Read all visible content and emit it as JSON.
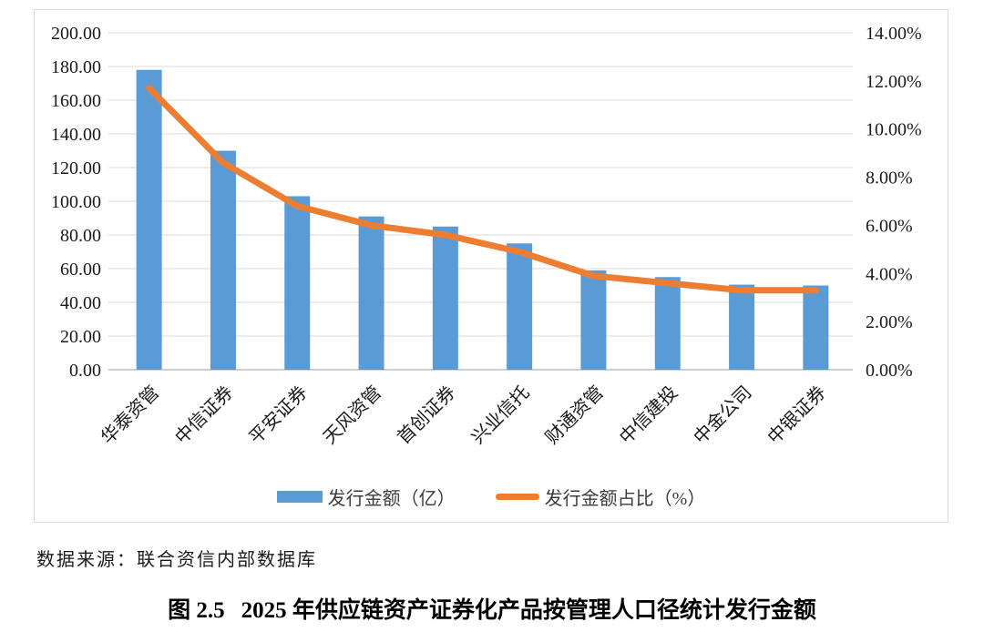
{
  "chart_data": {
    "type": "bar",
    "subtype": "bar-line-combo",
    "categories": [
      "华泰资管",
      "中信证券",
      "平安证券",
      "天风资管",
      "首创证券",
      "兴业信托",
      "财通资管",
      "中信建投",
      "中金公司",
      "中银证券"
    ],
    "series": [
      {
        "name": "发行金额（亿）",
        "type": "bar",
        "axis": "left",
        "color": "#5b9bd5",
        "values": [
          178,
          130,
          103,
          91,
          85,
          75,
          59,
          55,
          50.5,
          50
        ]
      },
      {
        "name": "发行金额占比（%）",
        "type": "line",
        "axis": "right",
        "color": "#ed7d31",
        "values": [
          11.7,
          8.6,
          6.8,
          6.0,
          5.6,
          4.9,
          3.9,
          3.6,
          3.3,
          3.3
        ]
      }
    ],
    "title": "图 2.5　2025 年供应链资产证券化产品按管理人口径统计发行金额",
    "xlabel": "",
    "ylabel_left": "发行金额（亿）",
    "ylabel_right": "发行金额占比（%）",
    "left_axis": {
      "min": 0,
      "max": 200,
      "step": 20,
      "ticks": [
        "0.00",
        "20.00",
        "40.00",
        "60.00",
        "80.00",
        "100.00",
        "120.00",
        "140.00",
        "160.00",
        "180.00",
        "200.00"
      ]
    },
    "right_axis": {
      "min": 0,
      "max": 14,
      "step": 2,
      "ticks": [
        "0.00%",
        "2.00%",
        "4.00%",
        "6.00%",
        "8.00%",
        "10.00%",
        "12.00%",
        "14.00%"
      ]
    },
    "grid": true,
    "legend_position": "bottom"
  },
  "legend": {
    "bar_label": "发行金额（亿）",
    "line_label": "发行金额占比（%）"
  },
  "source_note": "数据来源：联合资信内部数据库",
  "caption": {
    "figure_label": "图 2.5",
    "title": "2025 年供应链资产证券化产品按管理人口径统计发行金额"
  },
  "colors": {
    "bar": "#5b9bd5",
    "line": "#ed7d31",
    "grid": "#d9d9d9",
    "axis_line": "#bfbfbf",
    "frame": "#d9d9d9",
    "text": "#1a1a1a"
  }
}
